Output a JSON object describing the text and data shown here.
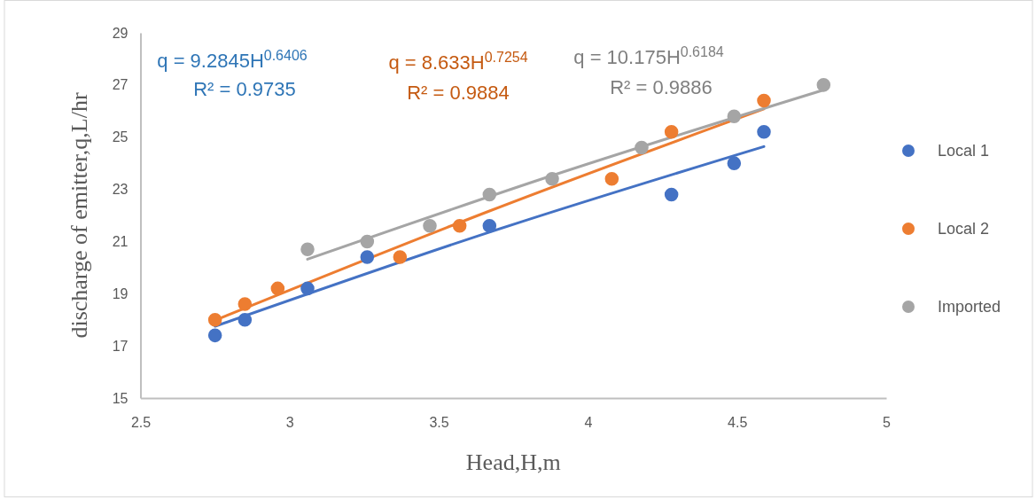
{
  "chart_data": {
    "type": "scatter",
    "xlabel": "Head,H,m",
    "ylabel": "discharge of emitter,q,L/hr",
    "xlim": [
      2.5,
      5
    ],
    "xticks": [
      2.5,
      3,
      3.5,
      4,
      4.5,
      5
    ],
    "ylim": [
      15,
      29
    ],
    "yticks": [
      15,
      17,
      19,
      21,
      23,
      25,
      27,
      29
    ],
    "grid": false,
    "legend": "right",
    "marker": "circle",
    "series": [
      {
        "name": "Local 1",
        "color": "#4472c4",
        "x": [
          2.75,
          2.85,
          3.06,
          3.26,
          3.67,
          4.28,
          4.49,
          4.59
        ],
        "values": [
          17.4,
          18.0,
          19.2,
          20.4,
          21.6,
          22.8,
          24.0,
          25.2
        ]
      },
      {
        "name": "Local 2",
        "color": "#ed7d31",
        "x": [
          2.75,
          2.85,
          2.96,
          3.37,
          3.57,
          4.08,
          4.28,
          4.59
        ],
        "values": [
          18.0,
          18.6,
          19.2,
          20.4,
          21.6,
          23.4,
          25.2,
          26.4
        ]
      },
      {
        "name": "Imported",
        "color": "#a5a5a5",
        "x": [
          3.06,
          3.26,
          3.47,
          3.67,
          3.88,
          4.18,
          4.49,
          4.79
        ],
        "values": [
          20.7,
          21.0,
          21.6,
          22.8,
          23.4,
          24.6,
          25.8,
          27.0
        ]
      },
      {
        "type": "line",
        "marker": "none",
        "color": "#4472c4",
        "x": [
          2.75,
          3.67,
          4.59
        ],
        "values": [
          17.75,
          21.36,
          24.64
        ]
      },
      {
        "type": "line",
        "marker": "none",
        "color": "#ed7d31",
        "x": [
          2.75,
          3.67,
          4.59
        ],
        "values": [
          17.98,
          22.17,
          26.08
        ]
      },
      {
        "type": "line",
        "marker": "none",
        "color": "#a5a5a5",
        "x": [
          3.06,
          3.88,
          4.79
        ],
        "values": [
          20.32,
          23.53,
          26.81
        ]
      }
    ],
    "annotations": [
      "q = 9.2845H$^{0.6406}$",
      "R² = 0.9735",
      "q = 8.633H$^{0.7254}$",
      "R² = 0.9884",
      "q = 10.175H$^{0.6184}$",
      "R² = 0.9886"
    ]
  }
}
